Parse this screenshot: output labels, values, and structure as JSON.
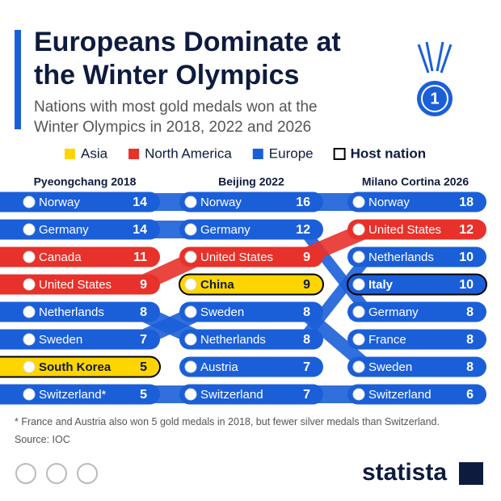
{
  "chart_data": {
    "type": "bump",
    "title": "Europeans Dominate at the Winter Olympics",
    "subtitle": "Nations with most gold medals won at the Winter Olympics in 2018, 2022 and 2026",
    "legend": [
      {
        "name": "Asia",
        "color": "#ffd500"
      },
      {
        "name": "North America",
        "color": "#e8312a"
      },
      {
        "name": "Europe",
        "color": "#1b5fd8"
      }
    ],
    "host_label": "Host nation",
    "columns": [
      {
        "name": "Pyeongchang 2018",
        "series": [
          {
            "name": "Norway",
            "region": "Europe",
            "value": 14
          },
          {
            "name": "Germany",
            "region": "Europe",
            "value": 14
          },
          {
            "name": "Canada",
            "region": "North America",
            "value": 11
          },
          {
            "name": "United States",
            "region": "North America",
            "value": 9
          },
          {
            "name": "Netherlands",
            "region": "Europe",
            "value": 8
          },
          {
            "name": "Sweden",
            "region": "Europe",
            "value": 7
          },
          {
            "name": "South Korea",
            "region": "Asia",
            "value": 5,
            "host": true
          },
          {
            "name": "Switzerland*",
            "region": "Europe",
            "value": 5
          }
        ]
      },
      {
        "name": "Beijing 2022",
        "series": [
          {
            "name": "Norway",
            "region": "Europe",
            "value": 16
          },
          {
            "name": "Germany",
            "region": "Europe",
            "value": 12
          },
          {
            "name": "United States",
            "region": "North America",
            "value": 9
          },
          {
            "name": "China",
            "region": "Asia",
            "value": 9,
            "host": true
          },
          {
            "name": "Sweden",
            "region": "Europe",
            "value": 8
          },
          {
            "name": "Netherlands",
            "region": "Europe",
            "value": 8
          },
          {
            "name": "Austria",
            "region": "Europe",
            "value": 7
          },
          {
            "name": "Switzerland",
            "region": "Europe",
            "value": 7
          }
        ]
      },
      {
        "name": "Milano Cortina 2026",
        "series": [
          {
            "name": "Norway",
            "region": "Europe",
            "value": 18
          },
          {
            "name": "United States",
            "region": "North America",
            "value": 12
          },
          {
            "name": "Netherlands",
            "region": "Europe",
            "value": 10
          },
          {
            "name": "Italy",
            "region": "Europe",
            "value": 10,
            "host": true
          },
          {
            "name": "Germany",
            "region": "Europe",
            "value": 8
          },
          {
            "name": "France",
            "region": "Europe",
            "value": 8
          },
          {
            "name": "Sweden",
            "region": "Europe",
            "value": 8
          },
          {
            "name": "Switzerland",
            "region": "Europe",
            "value": 6
          }
        ]
      }
    ],
    "footnote": "* France and Austria also won 5 gold medals in 2018, but fewer silver medals than Switzerland.",
    "source": "Source: IOC",
    "brand": "statista"
  }
}
